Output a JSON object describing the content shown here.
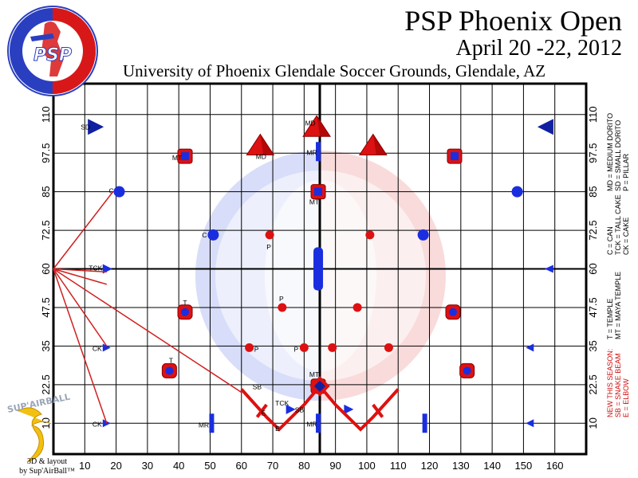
{
  "title": {
    "line1": "PSP Phoenix Open",
    "line2": "April 20 -22, 2012",
    "venue": "University of Phoenix Glendale Soccer Grounds, Glendale, AZ"
  },
  "logo": {
    "center": "PSP",
    "ring_text": "PAINTBALL SPORTS PROMOTIONS"
  },
  "branding": {
    "mark": "SUP'AIRBALL",
    "line1": "3D & layout",
    "line2": "by Sup'AirBall™"
  },
  "legend": {
    "group1": [
      "MD = MEDIUM DORITO",
      "SD = SMALL DORITO",
      "P = PILLAR"
    ],
    "group2": [
      "C = CAN",
      "TCK = TALL CAKE",
      "CK = CAKE"
    ],
    "group3": [
      "T = TEMPLE",
      "MT = MAYA TEMPLE"
    ],
    "group4_red": [
      "NEW THIS SEASON:",
      "SB = SNAKE BEAM",
      "E = ELBOW"
    ]
  },
  "axes": {
    "x_ticks": [
      10,
      20,
      30,
      40,
      50,
      60,
      70,
      80,
      90,
      100,
      110,
      120,
      130,
      140,
      150,
      160
    ],
    "y_ticks": [
      10,
      22.5,
      35,
      47.5,
      60,
      72.5,
      85,
      97.5,
      110
    ],
    "x_labels": [
      "10",
      "20",
      "30",
      "40",
      "50",
      "60",
      "70",
      "80",
      "90",
      "100",
      "110",
      "120",
      "130",
      "140",
      "150",
      "160"
    ],
    "y_labels": [
      "10",
      "22.5",
      "35",
      "47.5",
      "60",
      "72.5",
      "85",
      "97.5",
      "110"
    ]
  },
  "colors": {
    "red": "#dd1111",
    "blue": "#1a2ee0",
    "dark_red": "#8b0000"
  },
  "bunkers": [
    {
      "type": "sd",
      "x": 12,
      "y": 106,
      "label": "SD",
      "lx": -7,
      "ly": 0
    },
    {
      "type": "sd_r",
      "x": 157,
      "y": 106,
      "label": ""
    },
    {
      "type": "md",
      "x": 84,
      "y": 106,
      "label": "MD",
      "lx": -8,
      "ly": -5
    },
    {
      "type": "md",
      "x": 66,
      "y": 100,
      "label": "MD",
      "lx": 1,
      "ly": 14
    },
    {
      "type": "md",
      "x": 102,
      "y": 100,
      "label": ""
    },
    {
      "type": "mt",
      "x": 42,
      "y": 96.5,
      "label": "MT",
      "lx": -10,
      "ly": 2
    },
    {
      "type": "mt",
      "x": 128,
      "y": 96.5,
      "label": ""
    },
    {
      "type": "mt",
      "x": 84.5,
      "y": 85,
      "label": "MT",
      "lx": -5,
      "ly": 13
    },
    {
      "type": "mt",
      "x": 84.5,
      "y": 22,
      "label": "MT",
      "lx": -5,
      "ly": -15
    },
    {
      "type": "mr",
      "x": 84.5,
      "y": 98,
      "label": "MR",
      "lx": -8,
      "ly": 1
    },
    {
      "type": "mr",
      "x": 84.5,
      "y": 10,
      "label": "MR",
      "lx": -8,
      "ly": 1
    },
    {
      "type": "mr",
      "x": 50.5,
      "y": 10,
      "label": "MR",
      "lx": -10,
      "ly": 2
    },
    {
      "type": "mr",
      "x": 118.5,
      "y": 10,
      "label": ""
    },
    {
      "type": "snake_mid",
      "x": 84.5,
      "y": 60,
      "label": ""
    },
    {
      "type": "can",
      "x": 21,
      "y": 85,
      "label": "C",
      "lx": -10,
      "ly": -1
    },
    {
      "type": "can",
      "x": 148,
      "y": 85,
      "label": ""
    },
    {
      "type": "can",
      "x": 51,
      "y": 71,
      "label": "C",
      "lx": -11,
      "ly": 0
    },
    {
      "type": "can",
      "x": 118,
      "y": 71,
      "label": ""
    },
    {
      "type": "pillar",
      "x": 69,
      "y": 71,
      "label": "P",
      "lx": -1,
      "ly": 15
    },
    {
      "type": "pillar",
      "x": 101,
      "y": 71,
      "label": ""
    },
    {
      "type": "pillar",
      "x": 73,
      "y": 47.5,
      "label": "P",
      "lx": -1,
      "ly": -11
    },
    {
      "type": "pillar",
      "x": 97,
      "y": 47.5,
      "label": ""
    },
    {
      "type": "pillar",
      "x": 62.5,
      "y": 34.5,
      "label": "P",
      "lx": 9,
      "ly": 2
    },
    {
      "type": "pillar",
      "x": 80,
      "y": 34.5,
      "label": "P",
      "lx": -10,
      "ly": 2
    },
    {
      "type": "pillar",
      "x": 89,
      "y": 34.5,
      "label": ""
    },
    {
      "type": "pillar",
      "x": 107,
      "y": 34.5,
      "label": ""
    },
    {
      "type": "temple",
      "x": 42,
      "y": 46,
      "label": "T",
      "lx": 0,
      "ly": -12
    },
    {
      "type": "temple",
      "x": 127.5,
      "y": 46,
      "label": ""
    },
    {
      "type": "temple",
      "x": 37,
      "y": 27,
      "label": "T",
      "lx": 2,
      "ly": -13
    },
    {
      "type": "temple",
      "x": 132,
      "y": 27,
      "label": ""
    },
    {
      "type": "ck",
      "x": 17,
      "y": 34.5,
      "label": "CK",
      "lx": -12,
      "ly": 1
    },
    {
      "type": "ck",
      "x": 17,
      "y": 10,
      "label": "CK",
      "lx": -12,
      "ly": 1
    },
    {
      "type": "ck_r",
      "x": 152,
      "y": 34.5,
      "label": ""
    },
    {
      "type": "ck_r",
      "x": 152,
      "y": 10,
      "label": ""
    },
    {
      "type": "tck",
      "x": 17,
      "y": 60,
      "label": "TCK",
      "lx": -14,
      "ly": -1
    },
    {
      "type": "tck_r",
      "x": 158,
      "y": 60,
      "label": ""
    },
    {
      "type": "tck",
      "x": 75.5,
      "y": 14.5,
      "label": "TCK",
      "lx": -10,
      "ly": -8
    },
    {
      "type": "tck",
      "x": 94,
      "y": 14.5,
      "label": ""
    }
  ],
  "snake_labels": [
    {
      "text": "SB",
      "x": 65,
      "y": 21
    },
    {
      "text": "E",
      "x": 67,
      "y": 12.5
    },
    {
      "text": "E",
      "x": 71.5,
      "y": 7.5
    },
    {
      "text": "SB",
      "x": 78.5,
      "y": 13.5
    }
  ]
}
